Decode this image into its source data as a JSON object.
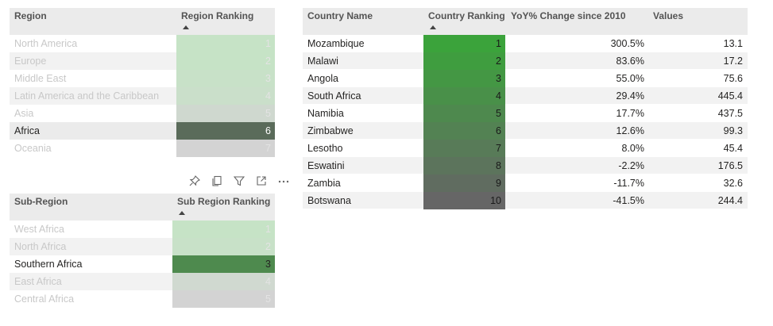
{
  "region_table": {
    "headers": {
      "region": "Region",
      "ranking": "Region Ranking"
    },
    "rows": [
      {
        "name": "North America",
        "rank": "1",
        "color": "#c6e3c6",
        "dim": true
      },
      {
        "name": "Europe",
        "rank": "2",
        "color": "#c6e3c6",
        "dim": true
      },
      {
        "name": "Middle East",
        "rank": "3",
        "color": "#c8e1c8",
        "dim": true
      },
      {
        "name": "Latin America and the Caribbean",
        "rank": "4",
        "color": "#cadfca",
        "dim": true
      },
      {
        "name": "Asia",
        "rank": "5",
        "color": "#cfd8cf",
        "dim": true
      },
      {
        "name": "Africa",
        "rank": "6",
        "color": "#5a6b5a",
        "dim": false
      },
      {
        "name": "Oceania",
        "rank": "7",
        "color": "#d3d3d3",
        "dim": true
      }
    ]
  },
  "subregion_table": {
    "headers": {
      "subregion": "Sub-Region",
      "ranking": "Sub Region Ranking"
    },
    "rows": [
      {
        "name": "West Africa",
        "rank": "1",
        "color": "#c6e3c6",
        "dim": true
      },
      {
        "name": "North Africa",
        "rank": "2",
        "color": "#c8e1c8",
        "dim": true
      },
      {
        "name": "Southern Africa",
        "rank": "3",
        "color": "#4e8a4e",
        "dim": false
      },
      {
        "name": "East Africa",
        "rank": "4",
        "color": "#d0d9d0",
        "dim": true
      },
      {
        "name": "Central Africa",
        "rank": "5",
        "color": "#d3d3d3",
        "dim": true
      }
    ]
  },
  "visual_toolbar": {
    "icons": [
      "pin-icon",
      "copy-icon",
      "filter-icon",
      "focus-mode-icon",
      "more-options-icon"
    ]
  },
  "country_table": {
    "headers": {
      "country": "Country Name",
      "ranking": "Country Ranking",
      "yoy": "YoY% Change since 2010",
      "values": "Values"
    },
    "rows": [
      {
        "name": "Mozambique",
        "rank": "1",
        "yoy": "300.5%",
        "value": "13.1",
        "color": "#3ba33b"
      },
      {
        "name": "Malawi",
        "rank": "2",
        "yoy": "83.6%",
        "value": "17.2",
        "color": "#3f9d3f"
      },
      {
        "name": "Angola",
        "rank": "3",
        "yoy": "55.0%",
        "value": "75.6",
        "color": "#449744"
      },
      {
        "name": "South Africa",
        "rank": "4",
        "yoy": "29.4%",
        "value": "445.4",
        "color": "#499049"
      },
      {
        "name": "Namibia",
        "rank": "5",
        "yoy": "17.7%",
        "value": "437.5",
        "color": "#4e894e"
      },
      {
        "name": "Zimbabwe",
        "rank": "6",
        "yoy": "12.6%",
        "value": "99.3",
        "color": "#538253"
      },
      {
        "name": "Lesotho",
        "rank": "7",
        "yoy": "8.0%",
        "value": "45.4",
        "color": "#587b58"
      },
      {
        "name": "Eswatini",
        "rank": "8",
        "yoy": "-2.2%",
        "value": "176.5",
        "color": "#5c745c"
      },
      {
        "name": "Zambia",
        "rank": "9",
        "yoy": "-11.7%",
        "value": "32.6",
        "color": "#606c60"
      },
      {
        "name": "Botswana",
        "rank": "10",
        "yoy": "-41.5%",
        "value": "244.4",
        "color": "#666666"
      }
    ]
  }
}
